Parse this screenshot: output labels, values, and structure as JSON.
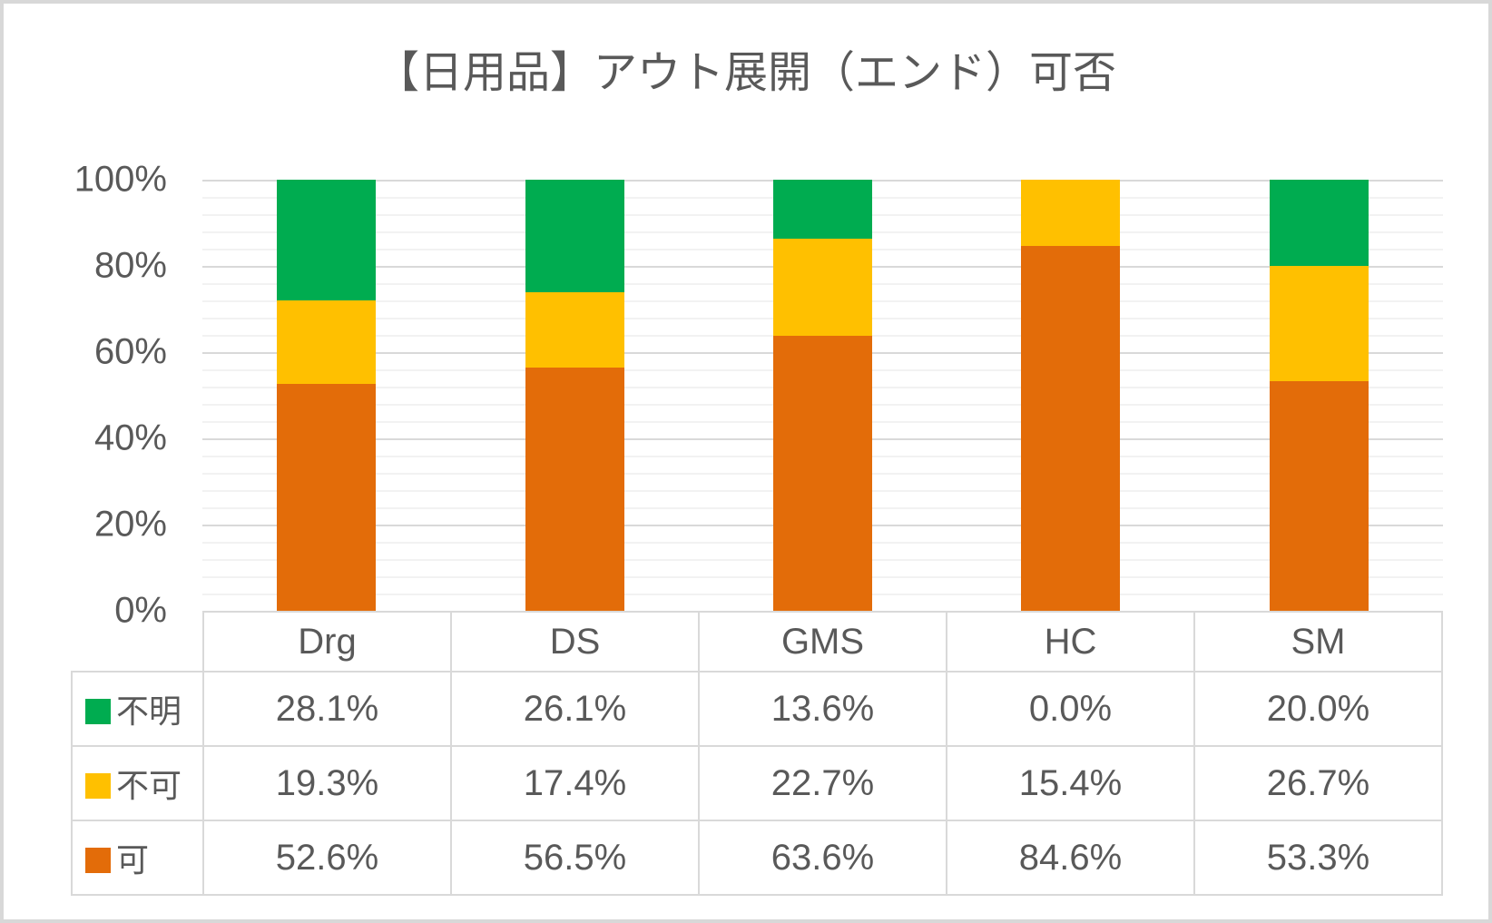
{
  "title": "【日用品】アウト展開（エンド）可否",
  "frame": {
    "background": "#FFFFFF",
    "border_color": "#D8D8D8",
    "text_color": "#595959",
    "table_border_color": "#D9D9D9"
  },
  "chart_data": {
    "type": "bar",
    "variant": "stacked-100-percent-column",
    "title": "【日用品】アウト展開（エンド）可否",
    "categories": [
      "Drg",
      "DS",
      "GMS",
      "HC",
      "SM"
    ],
    "series": [
      {
        "name": "不明",
        "key": "unknown",
        "color": "#00AC50",
        "values": [
          28.1,
          26.1,
          13.6,
          0.0,
          20.0
        ]
      },
      {
        "name": "不可",
        "key": "not-allowed",
        "color": "#FFC000",
        "values": [
          19.3,
          17.4,
          22.7,
          15.4,
          26.7
        ]
      },
      {
        "name": "可",
        "key": "allowed",
        "color": "#E36C09",
        "values": [
          52.6,
          56.5,
          63.6,
          84.6,
          53.3
        ]
      }
    ],
    "stack_order_bottom_to_top": [
      "可",
      "不可",
      "不明"
    ],
    "ylim": [
      0,
      100
    ],
    "y_ticks": [
      "100%",
      "80%",
      "60%",
      "40%",
      "20%",
      "0%"
    ],
    "y_major_step_pct": 20,
    "y_minor_step_pct": 4,
    "grid": {
      "major_color": "#D9D9D9",
      "minor_color": "#F2F2F2"
    },
    "legend_position": "data-table-left",
    "data_table": {
      "header": [
        "Drg",
        "DS",
        "GMS",
        "HC",
        "SM"
      ],
      "rows": [
        {
          "legend": "不明",
          "key": "unknown",
          "swatch_color": "#00AC50",
          "cells": [
            "28.1%",
            "26.1%",
            "13.6%",
            "0.0%",
            "20.0%"
          ]
        },
        {
          "legend": "不可",
          "key": "not-allowed",
          "swatch_color": "#FFC000",
          "cells": [
            "19.3%",
            "17.4%",
            "22.7%",
            "15.4%",
            "26.7%"
          ]
        },
        {
          "legend": "可",
          "key": "allowed",
          "swatch_color": "#E36C09",
          "cells": [
            "52.6%",
            "56.5%",
            "63.6%",
            "84.6%",
            "53.3%"
          ]
        }
      ]
    }
  }
}
